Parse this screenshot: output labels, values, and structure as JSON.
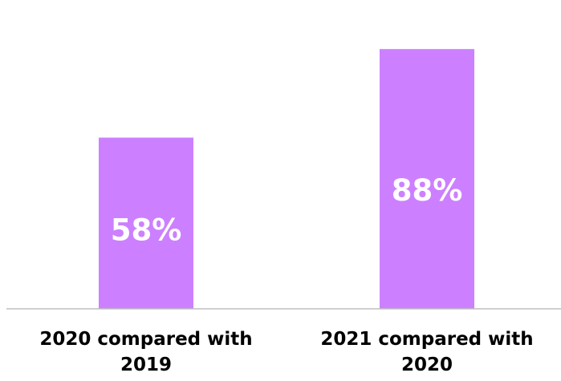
{
  "chart_data": {
    "type": "bar",
    "categories": [
      "2020 compared with 2019",
      "2021 compared with 2020"
    ],
    "category_lines": [
      [
        "2020 compared with",
        "2019"
      ],
      [
        "2021 compared with",
        "2020"
      ]
    ],
    "values": [
      58,
      88
    ],
    "data_labels": [
      "58%",
      "88%"
    ],
    "unit": "%",
    "ylim": [
      0,
      100
    ],
    "grid": false,
    "legend": "none",
    "bar_color": "#cc80ff",
    "baseline_color": "#bfbfbf",
    "data_label_color": "#ffffff"
  }
}
